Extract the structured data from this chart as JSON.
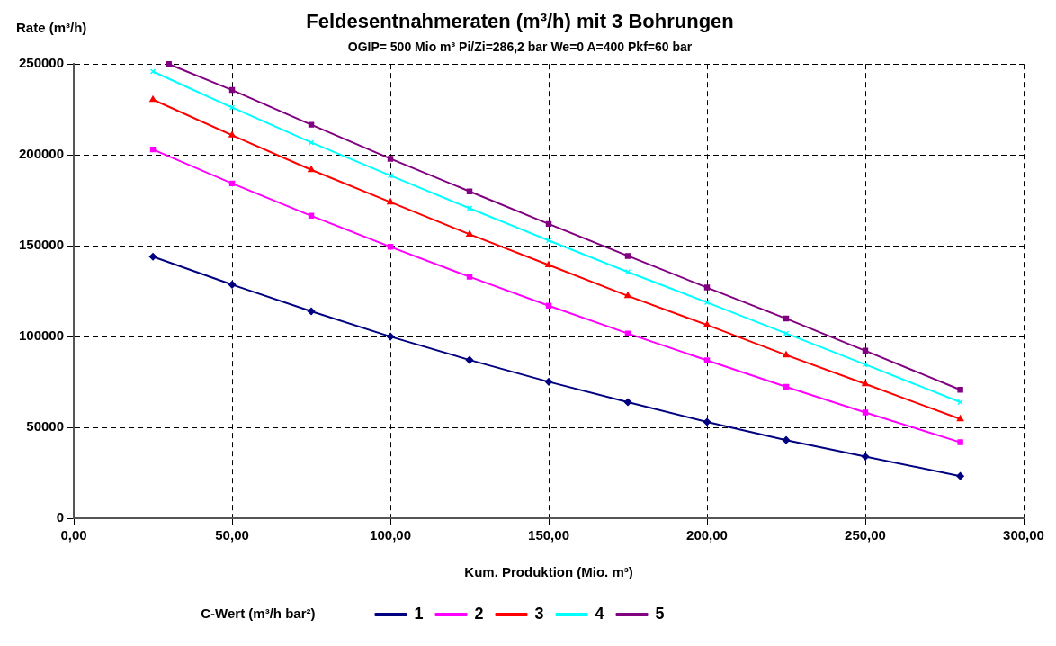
{
  "chart_data": {
    "type": "line",
    "title": "Feldesentnahmeraten (m³/h) mit 3 Bohrungen",
    "subtitle": "OGIP= 500 Mio m³ Pi/Zi=286,2 bar We=0 A=400 Pkf=60 bar",
    "xlabel": "Kum. Produktion (Mio. m³)",
    "ylabel": "Rate (m³/h)",
    "legend_title": "C-Wert (m³/h bar²)",
    "legend": "bottom",
    "grid": true,
    "line_style": "solid",
    "xlim": [
      0,
      300
    ],
    "xticks": [
      {
        "value": 0,
        "label": "0,00"
      },
      {
        "value": 50,
        "label": "50,00"
      },
      {
        "value": 100,
        "label": "100,00"
      },
      {
        "value": 150,
        "label": "150,00"
      },
      {
        "value": 200,
        "label": "200,00"
      },
      {
        "value": 250,
        "label": "250,00"
      },
      {
        "value": 300,
        "label": "300,00"
      }
    ],
    "ylim": [
      0,
      250000
    ],
    "yticks": [
      0,
      50000,
      100000,
      150000,
      200000,
      250000
    ],
    "series": [
      {
        "name": "1",
        "color": "#000080",
        "marker": "diamond",
        "x": [
          25,
          50,
          75,
          100,
          125,
          150,
          175,
          200,
          225,
          250,
          280
        ],
        "values": [
          144000,
          128600,
          113900,
          100000,
          87100,
          75100,
          63900,
          53000,
          43000,
          33900,
          23200
        ]
      },
      {
        "name": "2",
        "color": "#ff00ff",
        "marker": "square",
        "x": [
          25,
          50,
          75,
          100,
          125,
          150,
          175,
          200,
          225,
          250,
          280
        ],
        "values": [
          203000,
          184300,
          166500,
          149400,
          132900,
          117000,
          101700,
          86900,
          72300,
          58200,
          41800
        ]
      },
      {
        "name": "3",
        "color": "#ff0000",
        "marker": "triangle",
        "x": [
          25,
          50,
          75,
          100,
          125,
          150,
          175,
          200,
          225,
          250,
          280
        ],
        "values": [
          230400,
          210800,
          191800,
          174000,
          156300,
          139400,
          122400,
          106400,
          89800,
          73900,
          54600
        ]
      },
      {
        "name": "4",
        "color": "#00ffff",
        "marker": "cross",
        "x": [
          25,
          50,
          75,
          100,
          125,
          150,
          175,
          200,
          225,
          250,
          280
        ],
        "values": [
          245900,
          226100,
          206800,
          188600,
          170600,
          152900,
          135600,
          118800,
          101700,
          84600,
          63900
        ]
      },
      {
        "name": "5",
        "color": "#800080",
        "marker": "square",
        "x": [
          30,
          50,
          75,
          100,
          125,
          150,
          175,
          200,
          225,
          250,
          280
        ],
        "values": [
          250000,
          235700,
          216600,
          197900,
          179900,
          162000,
          144400,
          127000,
          109900,
          92200,
          70700
        ]
      }
    ]
  }
}
